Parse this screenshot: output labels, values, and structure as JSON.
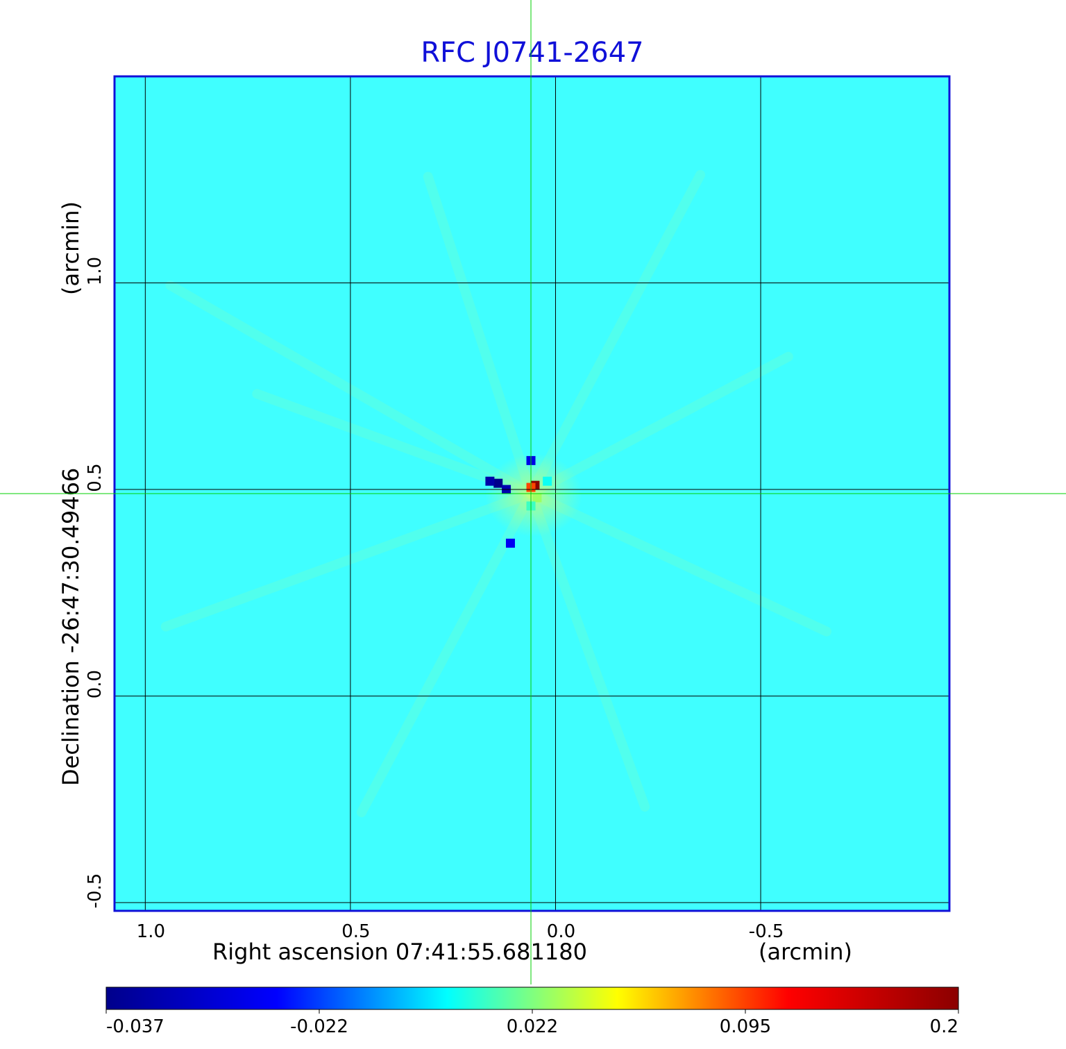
{
  "chart_data": {
    "type": "heatmap",
    "title": "RFC J0741-2647",
    "xlabel": "Right ascension  07:41:55.681180",
    "xunit": "(arcmin)",
    "ylabel": "Declination  -26:47:30.49466",
    "yunit": "(arcmin)",
    "xlim": [
      1.075,
      -0.96
    ],
    "ylim": [
      -0.52,
      1.5
    ],
    "x_ticks": [
      1.0,
      0.5,
      0.0,
      -0.5
    ],
    "x_tick_labels": [
      "1.0",
      "0.5",
      "0.0",
      "-0.5"
    ],
    "y_ticks": [
      -0.5,
      0.0,
      0.5,
      1.0
    ],
    "y_tick_labels": [
      "-0.5",
      "0.0",
      "0.5",
      "1.0"
    ],
    "grid": true,
    "crosshair": {
      "x": 0.06,
      "y": 0.49
    },
    "background_value": 0.0,
    "colorbar": {
      "tick_labels": [
        "-0.037",
        "-0.022",
        "0.022",
        "0.095",
        "0.2"
      ],
      "colors": [
        "#00008b",
        "#0000ff",
        "#00ffff",
        "#ffff00",
        "#ff0000",
        "#8b0000"
      ]
    },
    "peaks": [
      {
        "x": 0.05,
        "y": 0.51,
        "value": 0.2
      },
      {
        "x": 0.06,
        "y": 0.505,
        "value": 0.15
      },
      {
        "x": 0.045,
        "y": 0.48,
        "value": 0.09
      },
      {
        "x": 0.06,
        "y": 0.46,
        "value": 0.07
      },
      {
        "x": 0.02,
        "y": 0.52,
        "value": 0.06
      },
      {
        "x": 0.14,
        "y": 0.515,
        "value": -0.037
      },
      {
        "x": 0.16,
        "y": 0.52,
        "value": -0.03
      },
      {
        "x": 0.12,
        "y": 0.5,
        "value": -0.028
      },
      {
        "x": 0.06,
        "y": 0.57,
        "value": -0.015
      },
      {
        "x": 0.11,
        "y": 0.37,
        "value": -0.012
      }
    ]
  }
}
